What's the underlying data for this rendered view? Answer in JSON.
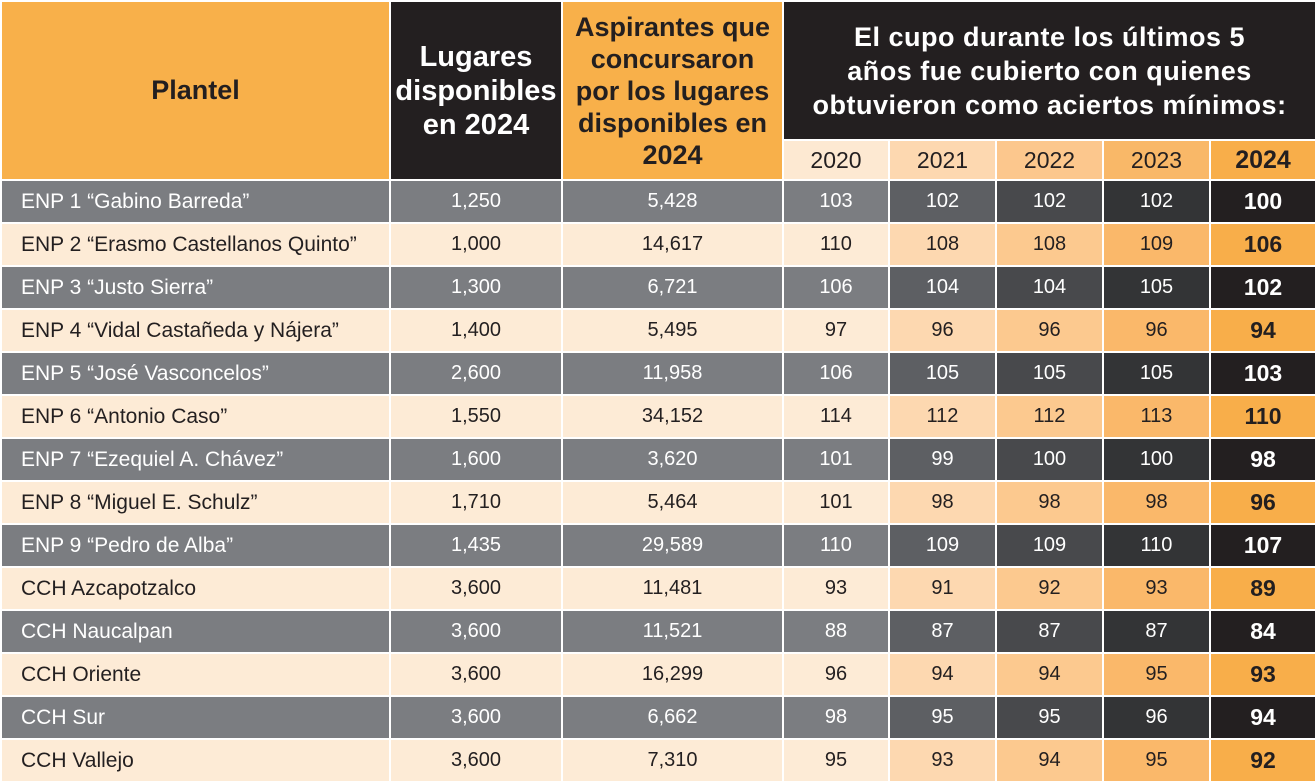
{
  "header": {
    "plantel": "Plantel",
    "lugares": [
      "Lugares",
      "disponibles",
      "en 2024"
    ],
    "aspirantes": [
      "Aspirantes que",
      "concursaron",
      "por los lugares",
      "disponibles en",
      "2024"
    ],
    "cupo": [
      "El cupo durante los últimos 5",
      "años fue cubierto con quienes",
      "obtuvieron como aciertos mínimos:"
    ],
    "years": [
      "2020",
      "2021",
      "2022",
      "2023",
      "2024"
    ]
  },
  "rows": [
    {
      "plantel": "ENP 1 “Gabino Barreda”",
      "lugares": "1,250",
      "aspirantes": "5,428",
      "y2020": "103",
      "y2021": "102",
      "y2022": "102",
      "y2023": "102",
      "y2024": "100"
    },
    {
      "plantel": "ENP 2 “Erasmo Castellanos Quinto”",
      "lugares": "1,000",
      "aspirantes": "14,617",
      "y2020": "110",
      "y2021": "108",
      "y2022": "108",
      "y2023": "109",
      "y2024": "106"
    },
    {
      "plantel": "ENP 3 “Justo Sierra”",
      "lugares": "1,300",
      "aspirantes": "6,721",
      "y2020": "106",
      "y2021": "104",
      "y2022": "104",
      "y2023": "105",
      "y2024": "102"
    },
    {
      "plantel": "ENP 4 “Vidal Castañeda y Nájera”",
      "lugares": "1,400",
      "aspirantes": "5,495",
      "y2020": "97",
      "y2021": "96",
      "y2022": "96",
      "y2023": "96",
      "y2024": "94"
    },
    {
      "plantel": "ENP 5 “José Vasconcelos”",
      "lugares": "2,600",
      "aspirantes": "11,958",
      "y2020": "106",
      "y2021": "105",
      "y2022": "105",
      "y2023": "105",
      "y2024": "103"
    },
    {
      "plantel": "ENP 6 “Antonio Caso”",
      "lugares": "1,550",
      "aspirantes": "34,152",
      "y2020": "114",
      "y2021": "112",
      "y2022": "112",
      "y2023": "113",
      "y2024": "110"
    },
    {
      "plantel": "ENP 7 “Ezequiel A. Chávez”",
      "lugares": "1,600",
      "aspirantes": "3,620",
      "y2020": "101",
      "y2021": "99",
      "y2022": "100",
      "y2023": "100",
      "y2024": "98"
    },
    {
      "plantel": "ENP 8 “Miguel E. Schulz”",
      "lugares": "1,710",
      "aspirantes": "5,464",
      "y2020": "101",
      "y2021": "98",
      "y2022": "98",
      "y2023": "98",
      "y2024": "96"
    },
    {
      "plantel": "ENP 9 “Pedro de Alba”",
      "lugares": "1,435",
      "aspirantes": "29,589",
      "y2020": "110",
      "y2021": "109",
      "y2022": "109",
      "y2023": "110",
      "y2024": "107"
    },
    {
      "plantel": "CCH Azcapotzalco",
      "lugares": "3,600",
      "aspirantes": "11,481",
      "y2020": "93",
      "y2021": "91",
      "y2022": "92",
      "y2023": "93",
      "y2024": "89"
    },
    {
      "plantel": "CCH Naucalpan",
      "lugares": "3,600",
      "aspirantes": "11,521",
      "y2020": "88",
      "y2021": "87",
      "y2022": "87",
      "y2023": "87",
      "y2024": "84"
    },
    {
      "plantel": "CCH Oriente",
      "lugares": "3,600",
      "aspirantes": "16,299",
      "y2020": "96",
      "y2021": "94",
      "y2022": "94",
      "y2023": "95",
      "y2024": "93"
    },
    {
      "plantel": "CCH Sur",
      "lugares": "3,600",
      "aspirantes": "6,662",
      "y2020": "98",
      "y2021": "95",
      "y2022": "95",
      "y2023": "96",
      "y2024": "94"
    },
    {
      "plantel": "CCH Vallejo",
      "lugares": "3,600",
      "aspirantes": "7,310",
      "y2020": "95",
      "y2021": "93",
      "y2022": "94",
      "y2023": "95",
      "y2024": "92"
    }
  ]
}
